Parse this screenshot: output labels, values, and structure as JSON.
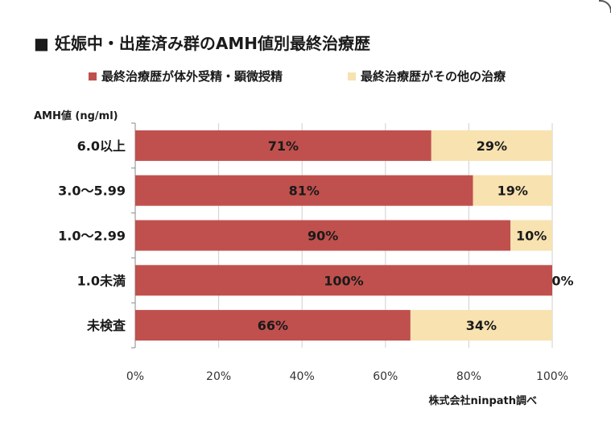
{
  "title": "■ 妊娠中・出産済み群のAMH値別最終治療歴",
  "legend": [
    {
      "label": "最終治療歴が体外受精・顕微授精",
      "color": "#c0504d"
    },
    {
      "label": "最終治療歴がその他の治療",
      "color": "#f7e2b0"
    }
  ],
  "axis_title": "AMH値 (ng/ml)",
  "source": "株式会社ninpath調べ",
  "chart_data": {
    "type": "bar",
    "orientation": "horizontal",
    "stacked": true,
    "categories": [
      "6.0以上",
      "3.0～5.99",
      "1.0～2.99",
      "1.0未満",
      "未検査"
    ],
    "series": [
      {
        "name": "最終治療歴が体外受精・顕微授精",
        "values": [
          71,
          81,
          90,
          100,
          66
        ],
        "color": "#c0504d"
      },
      {
        "name": "最終治療歴がその他の治療",
        "values": [
          29,
          19,
          10,
          0,
          34
        ],
        "color": "#f7e2b0"
      }
    ],
    "data_labels": [
      [
        "71%",
        "81%",
        "90%",
        "100%",
        "66%"
      ],
      [
        "29%",
        "19%",
        "10%",
        "0%",
        "34%"
      ]
    ],
    "xlim": [
      0,
      100
    ],
    "xticks": [
      0,
      20,
      40,
      60,
      80,
      100
    ],
    "xtick_labels": [
      "0%",
      "20%",
      "40%",
      "60%",
      "80%",
      "100%"
    ],
    "grid": true,
    "legend_position": "top"
  }
}
